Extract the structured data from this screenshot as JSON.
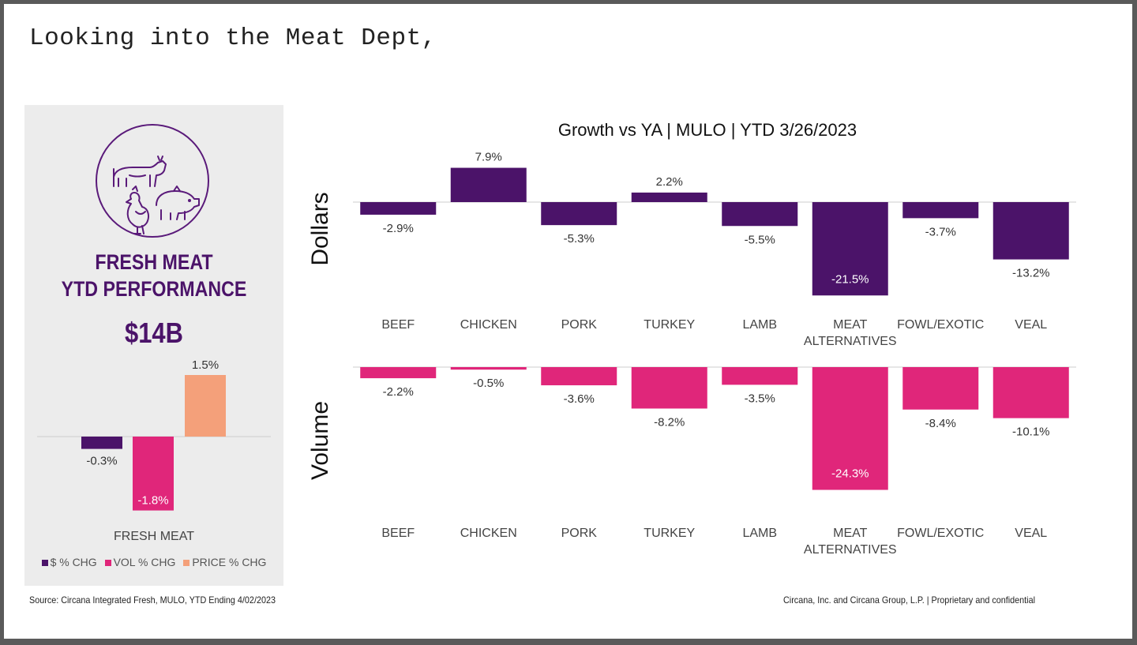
{
  "slide": {
    "title": "Looking into the Meat Dept,",
    "source": "Source: Circana Integrated Fresh, MULO, YTD Ending 4/02/2023",
    "confidentiality": "Circana, Inc. and Circana Group, L.P. |  Proprietary and confidential"
  },
  "panel": {
    "emblem_icon": "livestock-icon",
    "heading_line1": "FRESH MEAT",
    "heading_line2": "YTD PERFORMANCE",
    "total_value": "$14B"
  },
  "colors": {
    "dollars": "#4b1369",
    "volume": "#e0267a",
    "price": "#f4a07a",
    "panel_bg": "#ececec",
    "axis": "#cccccc"
  },
  "chart_data": [
    {
      "type": "bar",
      "category": "FRESH MEAT",
      "series": [
        {
          "name": "$ % CHG",
          "value": -0.3,
          "label": "-0.3%"
        },
        {
          "name": "VOL % CHG",
          "value": -1.8,
          "label": "-1.8%"
        },
        {
          "name": "PRICE % CHG",
          "value": 1.5,
          "label": "1.5%"
        }
      ],
      "legend": [
        "$ % CHG",
        "VOL % CHG",
        "PRICE % CHG"
      ],
      "legend_position": "bottom"
    },
    {
      "type": "bar",
      "title": "Growth vs YA | MULO | YTD 3/26/2023",
      "categories": [
        "BEEF",
        "CHICKEN",
        "PORK",
        "TURKEY",
        "LAMB",
        "MEAT ALTERNATIVES",
        "FOWL/EXOTIC",
        "VEAL"
      ],
      "series": [
        {
          "name": "Dollars",
          "values": [
            -2.9,
            7.9,
            -5.3,
            2.2,
            -5.5,
            -21.5,
            -3.7,
            -13.2
          ],
          "labels": [
            "-2.9%",
            "7.9%",
            "-5.3%",
            "2.2%",
            "-5.5%",
            "-21.5%",
            "-3.7%",
            "-13.2%"
          ]
        },
        {
          "name": "Volume",
          "values": [
            -2.2,
            -0.5,
            -3.6,
            -8.2,
            -3.5,
            -24.3,
            -8.4,
            -10.1
          ],
          "labels": [
            "-2.2%",
            "-0.5%",
            "-3.6%",
            "-8.2%",
            "-3.5%",
            "-24.3%",
            "-8.4%",
            "-10.1%"
          ]
        }
      ]
    }
  ]
}
